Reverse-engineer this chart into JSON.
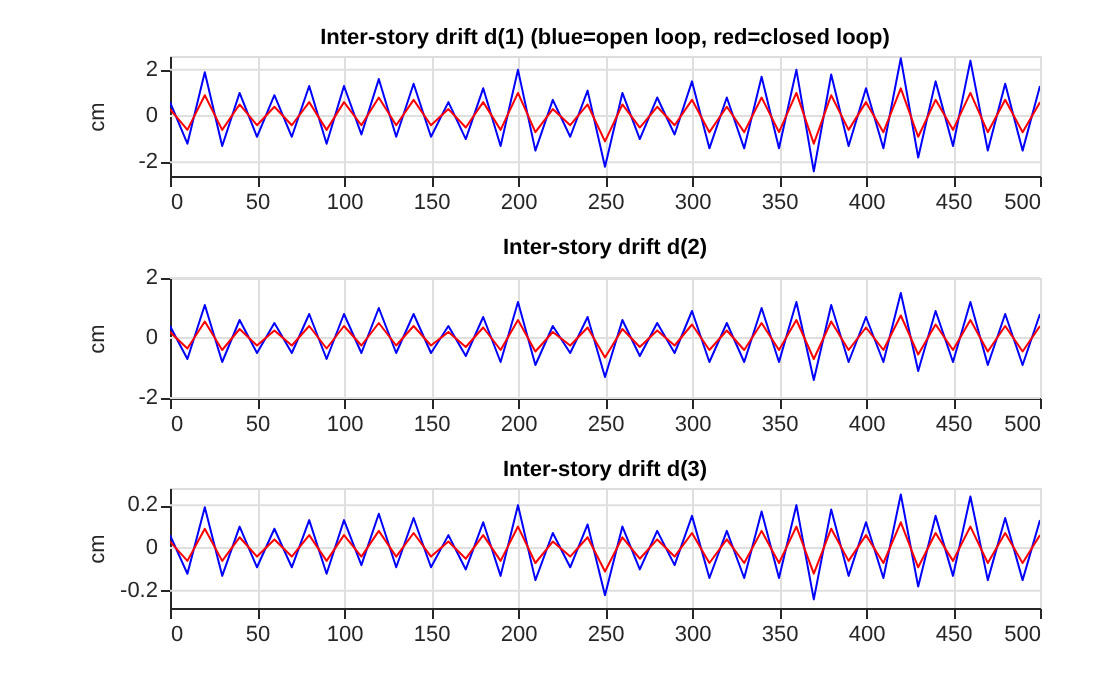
{
  "chart_data": [
    {
      "type": "line",
      "title": "Inter-story drift d(1) (blue=open loop, red=closed loop)",
      "ylabel": "cm",
      "xlim": [
        0,
        500
      ],
      "xticks": [
        0,
        50,
        100,
        150,
        200,
        250,
        300,
        350,
        400,
        450,
        500
      ],
      "ylim": [
        -2.6,
        2.6
      ],
      "yticks": [
        -2,
        0,
        2
      ],
      "grid": true,
      "legend": false,
      "x": [
        0,
        10,
        20,
        30,
        40,
        50,
        60,
        70,
        80,
        90,
        100,
        110,
        120,
        130,
        140,
        150,
        160,
        170,
        180,
        190,
        200,
        210,
        220,
        230,
        240,
        250,
        260,
        270,
        280,
        290,
        300,
        310,
        320,
        330,
        340,
        350,
        360,
        370,
        380,
        390,
        400,
        410,
        420,
        430,
        440,
        450,
        460,
        470,
        480,
        490,
        500
      ],
      "series": [
        {
          "color": "#0000ff",
          "values": [
            0.6,
            -1.2,
            1.9,
            -1.3,
            1.0,
            -0.9,
            0.9,
            -0.9,
            1.3,
            -1.2,
            1.3,
            -0.8,
            1.6,
            -0.9,
            1.4,
            -0.9,
            0.6,
            -1.0,
            1.2,
            -1.3,
            2.0,
            -1.5,
            0.7,
            -0.9,
            1.1,
            -2.2,
            1.0,
            -1.0,
            0.8,
            -0.8,
            1.5,
            -1.4,
            0.8,
            -1.4,
            1.7,
            -1.4,
            2.0,
            -2.4,
            1.8,
            -1.3,
            1.2,
            -1.4,
            2.5,
            -1.8,
            1.5,
            -1.3,
            2.4,
            -1.5,
            1.4,
            -1.5,
            1.3
          ]
        },
        {
          "color": "#ff0000",
          "values": [
            0.3,
            -0.6,
            0.9,
            -0.6,
            0.5,
            -0.4,
            0.4,
            -0.4,
            0.6,
            -0.6,
            0.6,
            -0.4,
            0.8,
            -0.4,
            0.7,
            -0.4,
            0.3,
            -0.5,
            0.6,
            -0.6,
            1.0,
            -0.7,
            0.3,
            -0.4,
            0.5,
            -1.1,
            0.5,
            -0.5,
            0.4,
            -0.4,
            0.7,
            -0.7,
            0.4,
            -0.7,
            0.8,
            -0.7,
            1.0,
            -1.2,
            0.9,
            -0.6,
            0.6,
            -0.7,
            1.2,
            -0.9,
            0.7,
            -0.6,
            1.0,
            -0.7,
            0.7,
            -0.7,
            0.6
          ]
        }
      ]
    },
    {
      "type": "line",
      "title": "Inter-story drift d(2)",
      "ylabel": "cm",
      "xlim": [
        0,
        500
      ],
      "xticks": [
        0,
        50,
        100,
        150,
        200,
        250,
        300,
        350,
        400,
        450,
        500
      ],
      "ylim": [
        -2,
        2
      ],
      "yticks": [
        -2,
        0,
        2
      ],
      "grid": true,
      "legend": false,
      "x": [
        0,
        10,
        20,
        30,
        40,
        50,
        60,
        70,
        80,
        90,
        100,
        110,
        120,
        130,
        140,
        150,
        160,
        170,
        180,
        190,
        200,
        210,
        220,
        230,
        240,
        250,
        260,
        270,
        280,
        290,
        300,
        310,
        320,
        330,
        340,
        350,
        360,
        370,
        380,
        390,
        400,
        410,
        420,
        430,
        440,
        450,
        460,
        470,
        480,
        490,
        500
      ],
      "series": [
        {
          "color": "#0000ff",
          "values": [
            0.4,
            -0.7,
            1.1,
            -0.8,
            0.6,
            -0.5,
            0.5,
            -0.5,
            0.8,
            -0.7,
            0.8,
            -0.5,
            1.0,
            -0.5,
            0.8,
            -0.5,
            0.4,
            -0.6,
            0.7,
            -0.8,
            1.2,
            -0.9,
            0.4,
            -0.5,
            0.7,
            -1.3,
            0.6,
            -0.6,
            0.5,
            -0.5,
            0.9,
            -0.8,
            0.5,
            -0.8,
            1.0,
            -0.8,
            1.2,
            -1.4,
            1.1,
            -0.8,
            0.7,
            -0.8,
            1.5,
            -1.1,
            0.9,
            -0.8,
            1.2,
            -0.9,
            0.8,
            -0.9,
            0.8
          ]
        },
        {
          "color": "#ff0000",
          "values": [
            0.2,
            -0.35,
            0.55,
            -0.4,
            0.3,
            -0.25,
            0.25,
            -0.25,
            0.4,
            -0.35,
            0.4,
            -0.25,
            0.5,
            -0.25,
            0.4,
            -0.25,
            0.2,
            -0.3,
            0.35,
            -0.4,
            0.6,
            -0.45,
            0.2,
            -0.25,
            0.35,
            -0.65,
            0.3,
            -0.3,
            0.25,
            -0.25,
            0.45,
            -0.4,
            0.25,
            -0.4,
            0.5,
            -0.4,
            0.6,
            -0.7,
            0.55,
            -0.4,
            0.35,
            -0.4,
            0.75,
            -0.55,
            0.45,
            -0.4,
            0.6,
            -0.45,
            0.4,
            -0.45,
            0.4
          ]
        }
      ]
    },
    {
      "type": "line",
      "title": "Inter-story drift d(3)",
      "ylabel": "cm",
      "xlim": [
        0,
        500
      ],
      "xticks": [
        0,
        50,
        100,
        150,
        200,
        250,
        300,
        350,
        400,
        450,
        500
      ],
      "ylim": [
        -0.28,
        0.28
      ],
      "yticks": [
        -0.2,
        0,
        0.2
      ],
      "grid": true,
      "legend": false,
      "x": [
        0,
        10,
        20,
        30,
        40,
        50,
        60,
        70,
        80,
        90,
        100,
        110,
        120,
        130,
        140,
        150,
        160,
        170,
        180,
        190,
        200,
        210,
        220,
        230,
        240,
        250,
        260,
        270,
        280,
        290,
        300,
        310,
        320,
        330,
        340,
        350,
        360,
        370,
        380,
        390,
        400,
        410,
        420,
        430,
        440,
        450,
        460,
        470,
        480,
        490,
        500
      ],
      "series": [
        {
          "color": "#0000ff",
          "values": [
            0.06,
            -0.12,
            0.19,
            -0.13,
            0.1,
            -0.09,
            0.09,
            -0.09,
            0.13,
            -0.12,
            0.13,
            -0.08,
            0.16,
            -0.09,
            0.14,
            -0.09,
            0.06,
            -0.1,
            0.12,
            -0.13,
            0.2,
            -0.15,
            0.07,
            -0.09,
            0.11,
            -0.22,
            0.1,
            -0.1,
            0.08,
            -0.08,
            0.15,
            -0.14,
            0.08,
            -0.14,
            0.17,
            -0.14,
            0.2,
            -0.24,
            0.18,
            -0.13,
            0.12,
            -0.14,
            0.25,
            -0.18,
            0.15,
            -0.13,
            0.24,
            -0.15,
            0.14,
            -0.15,
            0.13
          ]
        },
        {
          "color": "#ff0000",
          "values": [
            0.03,
            -0.06,
            0.09,
            -0.06,
            0.05,
            -0.04,
            0.04,
            -0.04,
            0.06,
            -0.06,
            0.06,
            -0.04,
            0.08,
            -0.04,
            0.07,
            -0.04,
            0.03,
            -0.05,
            0.06,
            -0.06,
            0.1,
            -0.07,
            0.03,
            -0.04,
            0.05,
            -0.11,
            0.05,
            -0.05,
            0.04,
            -0.04,
            0.07,
            -0.07,
            0.04,
            -0.07,
            0.08,
            -0.07,
            0.1,
            -0.12,
            0.09,
            -0.06,
            0.06,
            -0.07,
            0.12,
            -0.09,
            0.07,
            -0.06,
            0.1,
            -0.07,
            0.07,
            -0.07,
            0.06
          ]
        }
      ]
    }
  ]
}
